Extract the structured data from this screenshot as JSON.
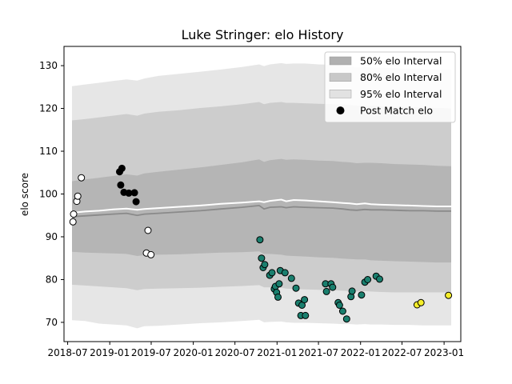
{
  "chart_data": {
    "type": "scatter",
    "title": "Luke Stringer: elo History",
    "xlabel": "",
    "ylabel": "elo score",
    "xlim": [
      "2018-06-15",
      "2023-03-15"
    ],
    "ylim": [
      65.5,
      134.5
    ],
    "x_ticks": [
      "2018-07",
      "2019-01",
      "2019-07",
      "2020-01",
      "2020-07",
      "2021-01",
      "2021-07",
      "2022-01",
      "2022-07",
      "2023-01"
    ],
    "y_ticks": [
      70,
      80,
      90,
      100,
      110,
      120,
      130
    ],
    "grid": false,
    "legend_position": "top-right",
    "legend": [
      {
        "label": "50% elo Interval",
        "kind": "patch",
        "color": "#b0b0b0"
      },
      {
        "label": "80% elo Interval",
        "kind": "patch",
        "color": "#c8c8c8"
      },
      {
        "label": "95% elo Interval",
        "kind": "patch",
        "color": "#e2e2e2"
      },
      {
        "label": "Post Match elo",
        "kind": "marker",
        "color": "#000000"
      }
    ],
    "band_x": [
      "2018-07-20",
      "2018-09-15",
      "2018-11-15",
      "2019-01-15",
      "2019-03-15",
      "2019-05-01",
      "2019-06-01",
      "2019-08-01",
      "2019-11-01",
      "2020-02-01",
      "2020-05-01",
      "2020-08-01",
      "2020-10-15",
      "2020-11-05",
      "2020-12-01",
      "2021-01-20",
      "2021-02-10",
      "2021-03-15",
      "2021-05-01",
      "2021-07-01",
      "2021-09-01",
      "2021-10-15",
      "2021-11-15",
      "2021-12-15",
      "2022-01-20",
      "2022-02-15",
      "2022-04-01",
      "2022-06-01",
      "2022-08-01",
      "2022-10-01",
      "2022-12-01",
      "2023-02-01"
    ],
    "median": [
      94.7,
      94.9,
      95.1,
      95.3,
      95.5,
      95.0,
      95.3,
      95.5,
      95.8,
      96.1,
      96.5,
      96.9,
      97.3,
      96.5,
      96.9,
      97.0,
      96.8,
      97.0,
      96.9,
      96.8,
      96.7,
      96.5,
      96.3,
      96.2,
      96.4,
      96.3,
      96.3,
      96.2,
      96.1,
      96.1,
      96.0,
      96.0
    ],
    "mean": [
      95.6,
      95.9,
      96.1,
      96.4,
      96.6,
      96.3,
      96.5,
      96.7,
      97.0,
      97.3,
      97.7,
      98.0,
      98.3,
      98.1,
      98.4,
      98.7,
      98.3,
      98.6,
      98.5,
      98.3,
      98.1,
      97.9,
      97.8,
      97.6,
      97.8,
      97.6,
      97.5,
      97.4,
      97.3,
      97.2,
      97.1,
      97.1
    ],
    "band_50": {
      "lower": [
        86.5,
        86.3,
        86.2,
        86.1,
        86.0,
        85.5,
        85.7,
        85.8,
        85.9,
        86.1,
        86.3,
        86.4,
        86.6,
        86.0,
        86.0,
        85.8,
        85.6,
        85.5,
        85.4,
        85.2,
        85.1,
        84.9,
        84.8,
        84.7,
        84.7,
        84.5,
        84.4,
        84.3,
        84.2,
        84.1,
        84.0,
        84.0
      ],
      "upper": [
        103.0,
        103.4,
        103.8,
        104.2,
        104.6,
        104.3,
        104.8,
        105.2,
        105.7,
        106.2,
        106.8,
        107.4,
        108.1,
        107.5,
        107.9,
        108.2,
        108.0,
        108.1,
        108.0,
        107.8,
        107.7,
        107.5,
        107.4,
        107.2,
        107.3,
        107.3,
        107.2,
        107.0,
        106.9,
        106.8,
        106.6,
        106.5
      ]
    },
    "band_80": {
      "lower": [
        78.8,
        78.6,
        78.4,
        78.2,
        78.0,
        77.5,
        77.8,
        77.9,
        78.0,
        78.1,
        78.3,
        78.5,
        78.7,
        78.2,
        78.2,
        78.1,
        77.9,
        77.8,
        77.7,
        77.6,
        77.5,
        77.4,
        77.3,
        77.2,
        77.3,
        77.2,
        77.1,
        77.0,
        77.0,
        77.0,
        77.0,
        77.0
      ],
      "upper": [
        117.2,
        117.5,
        117.9,
        118.3,
        118.7,
        118.3,
        118.8,
        119.2,
        119.6,
        120.1,
        120.5,
        121.0,
        121.5,
        121.0,
        121.3,
        121.5,
        121.3,
        121.3,
        121.2,
        121.1,
        121.0,
        120.9,
        120.8,
        120.6,
        120.6,
        120.6,
        120.5,
        120.4,
        120.3,
        120.2,
        120.1,
        120.0
      ]
    },
    "band_95": {
      "lower": [
        70.5,
        70.3,
        69.7,
        69.5,
        69.3,
        68.6,
        69.1,
        69.2,
        69.5,
        69.8,
        70.0,
        70.3,
        70.6,
        70.0,
        70.1,
        70.2,
        70.0,
        69.9,
        69.9,
        69.8,
        69.7,
        69.6,
        69.6,
        69.5,
        69.6,
        69.5,
        69.5,
        69.4,
        69.4,
        69.3,
        69.3,
        69.3
      ],
      "upper": [
        125.2,
        125.6,
        126.0,
        126.4,
        126.8,
        126.5,
        127.0,
        127.6,
        128.1,
        128.6,
        129.1,
        129.7,
        130.3,
        129.9,
        130.3,
        130.6,
        130.4,
        130.5,
        130.5,
        130.3,
        130.2,
        130.0,
        129.8,
        129.6,
        129.7,
        129.6,
        129.5,
        129.4,
        129.3,
        129.2,
        129.1,
        129.0
      ]
    },
    "series": [
      {
        "color": "#ffffff",
        "points": [
          {
            "x": "2018-07-24",
            "y": 93.5
          },
          {
            "x": "2018-07-27",
            "y": 95.3
          },
          {
            "x": "2018-08-10",
            "y": 98.3
          },
          {
            "x": "2018-08-14",
            "y": 99.5
          },
          {
            "x": "2018-08-30",
            "y": 103.8
          },
          {
            "x": "2019-06-17",
            "y": 91.5
          },
          {
            "x": "2019-06-10",
            "y": 86.2
          },
          {
            "x": "2019-06-30",
            "y": 85.8
          }
        ]
      },
      {
        "color": "#000000",
        "points": [
          {
            "x": "2019-02-13",
            "y": 105.2
          },
          {
            "x": "2019-02-23",
            "y": 106.0
          },
          {
            "x": "2019-02-18",
            "y": 102.1
          },
          {
            "x": "2019-03-04",
            "y": 100.4
          },
          {
            "x": "2019-03-25",
            "y": 100.2
          },
          {
            "x": "2019-04-19",
            "y": 100.3
          },
          {
            "x": "2019-04-26",
            "y": 98.2
          }
        ]
      },
      {
        "color": "#1a7f6e",
        "points": [
          {
            "x": "2020-10-18",
            "y": 89.3
          },
          {
            "x": "2020-10-25",
            "y": 85.0
          },
          {
            "x": "2020-11-01",
            "y": 82.8
          },
          {
            "x": "2020-11-08",
            "y": 83.5
          },
          {
            "x": "2020-11-30",
            "y": 81.0
          },
          {
            "x": "2020-12-10",
            "y": 81.6
          },
          {
            "x": "2020-12-20",
            "y": 77.8
          },
          {
            "x": "2020-12-25",
            "y": 78.4
          },
          {
            "x": "2020-12-30",
            "y": 77.0
          },
          {
            "x": "2021-01-05",
            "y": 75.9
          },
          {
            "x": "2021-01-10",
            "y": 79.0
          },
          {
            "x": "2021-01-15",
            "y": 82.1
          },
          {
            "x": "2021-02-05",
            "y": 81.6
          },
          {
            "x": "2021-03-05",
            "y": 80.3
          },
          {
            "x": "2021-03-25",
            "y": 78.0
          },
          {
            "x": "2021-04-05",
            "y": 74.5
          },
          {
            "x": "2021-04-15",
            "y": 71.6
          },
          {
            "x": "2021-04-20",
            "y": 74.0
          },
          {
            "x": "2021-05-01",
            "y": 75.3
          },
          {
            "x": "2021-05-05",
            "y": 71.6
          },
          {
            "x": "2021-08-01",
            "y": 79.0
          },
          {
            "x": "2021-08-05",
            "y": 77.2
          },
          {
            "x": "2021-08-25",
            "y": 79.0
          },
          {
            "x": "2021-09-01",
            "y": 78.2
          },
          {
            "x": "2021-09-25",
            "y": 74.6
          },
          {
            "x": "2021-10-01",
            "y": 74.0
          },
          {
            "x": "2021-10-15",
            "y": 72.6
          },
          {
            "x": "2021-11-01",
            "y": 70.8
          },
          {
            "x": "2021-11-20",
            "y": 76.0
          },
          {
            "x": "2021-11-25",
            "y": 77.3
          },
          {
            "x": "2022-01-05",
            "y": 76.4
          },
          {
            "x": "2022-01-20",
            "y": 79.4
          },
          {
            "x": "2022-02-01",
            "y": 80.0
          },
          {
            "x": "2022-03-10",
            "y": 80.8
          },
          {
            "x": "2022-03-25",
            "y": 80.1
          }
        ]
      },
      {
        "color": "#f5ee2a",
        "points": [
          {
            "x": "2022-09-05",
            "y": 74.1
          },
          {
            "x": "2022-09-22",
            "y": 74.6
          },
          {
            "x": "2023-01-20",
            "y": 76.3
          }
        ]
      }
    ]
  }
}
